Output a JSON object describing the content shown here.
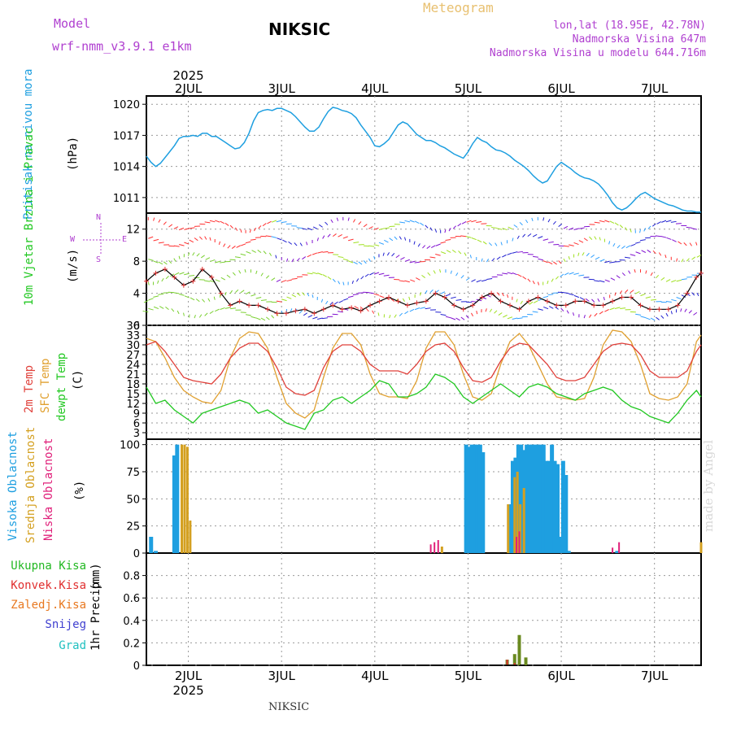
{
  "header": {
    "model_label": "Model",
    "model_name": "wrf-nmm_v3.9.1  e1km",
    "station": "NIKSIC",
    "title": "Meteogram",
    "lonlat": "lon,lat (18.95E, 42.78N)",
    "elevation": "Nadmorska Visina 647m",
    "model_elevation": "Nadmorska Visina u modelu 644.716m",
    "footer_station": "NIKSIC",
    "credit": "made by Angel"
  },
  "colors": {
    "pressure": "#1e9fe0",
    "temp2m": "#e0403a",
    "sfc_temp": "#e0a030",
    "dewpt": "#22c822",
    "cloud_high": "#1e9fe0",
    "cloud_mid": "#d4a020",
    "cloud_low": "#e0207a",
    "precip_total": "#22b822",
    "precip_conv": "#e03030",
    "precip_frz": "#e87820",
    "precip_snow": "#4040d0",
    "precip_hail": "#20c0c0",
    "model_text": "#b040d0",
    "title_text": "#e8c070"
  },
  "chart_data": [
    {
      "type": "line",
      "panel": "pressure",
      "ylabel": "Pritisak na nivou mora",
      "unit": "(hPa)",
      "ylim": [
        1009.5,
        1020.8
      ],
      "yticks": [
        1011,
        1014,
        1017,
        1020
      ],
      "x_days": [
        "2JUL",
        "3JUL",
        "4JUL",
        "5JUL",
        "6JUL",
        "7JUL"
      ],
      "year": "2025",
      "x_start": 1.55,
      "x_end": 7.5,
      "series": [
        {
          "x": [
            1.55,
            1.6,
            1.65,
            1.7,
            1.78,
            1.85,
            1.9,
            1.95,
            2.0,
            2.05,
            2.1,
            2.15,
            2.2,
            2.25,
            2.3,
            2.35,
            2.4,
            2.45,
            2.5,
            2.55,
            2.6,
            2.65,
            2.7,
            2.75,
            2.8,
            2.85,
            2.9,
            2.95,
            3.0,
            3.05,
            3.1,
            3.15,
            3.2,
            3.25,
            3.3,
            3.35,
            3.4,
            3.45,
            3.5,
            3.55,
            3.6,
            3.65,
            3.7,
            3.75,
            3.8,
            3.85,
            3.9,
            3.95,
            4.0,
            4.05,
            4.1,
            4.15,
            4.2,
            4.25,
            4.3,
            4.35,
            4.4,
            4.45,
            4.5,
            4.55,
            4.6,
            4.65,
            4.7,
            4.75,
            4.8,
            4.85,
            4.9,
            4.95,
            5.0,
            5.05,
            5.1,
            5.15,
            5.2,
            5.25,
            5.3,
            5.35,
            5.4,
            5.45,
            5.5,
            5.55,
            5.6,
            5.65,
            5.7,
            5.75,
            5.8,
            5.85,
            5.9,
            5.95,
            6.0,
            6.05,
            6.1,
            6.15,
            6.2,
            6.25,
            6.3,
            6.35,
            6.4,
            6.45,
            6.5,
            6.55,
            6.6,
            6.65,
            6.7,
            6.75,
            6.8,
            6.85,
            6.9,
            6.95,
            7.0,
            7.05,
            7.1,
            7.15,
            7.2,
            7.25,
            7.3,
            7.35,
            7.4,
            7.45,
            7.5
          ],
          "y": [
            1015.0,
            1014.4,
            1014.0,
            1014.3,
            1015.2,
            1016.0,
            1016.7,
            1016.9,
            1016.9,
            1017.0,
            1016.9,
            1017.2,
            1017.2,
            1016.9,
            1016.9,
            1016.6,
            1016.3,
            1016.0,
            1015.7,
            1015.8,
            1016.3,
            1017.2,
            1018.4,
            1019.2,
            1019.4,
            1019.5,
            1019.4,
            1019.6,
            1019.6,
            1019.4,
            1019.2,
            1018.8,
            1018.3,
            1017.8,
            1017.4,
            1017.4,
            1017.8,
            1018.6,
            1019.3,
            1019.7,
            1019.6,
            1019.4,
            1019.3,
            1019.1,
            1018.7,
            1018.0,
            1017.4,
            1016.8,
            1016.0,
            1015.9,
            1016.2,
            1016.6,
            1017.3,
            1018.0,
            1018.3,
            1018.1,
            1017.6,
            1017.1,
            1016.8,
            1016.5,
            1016.5,
            1016.3,
            1016.0,
            1015.8,
            1015.5,
            1015.2,
            1015.0,
            1014.8,
            1015.4,
            1016.2,
            1016.8,
            1016.5,
            1016.3,
            1015.9,
            1015.6,
            1015.5,
            1015.3,
            1015.0,
            1014.6,
            1014.3,
            1014.0,
            1013.6,
            1013.1,
            1012.7,
            1012.4,
            1012.6,
            1013.3,
            1014.0,
            1014.4,
            1014.1,
            1013.8,
            1013.4,
            1013.1,
            1012.9,
            1012.8,
            1012.6,
            1012.3,
            1011.8,
            1011.2,
            1010.5,
            1010.0,
            1009.8,
            1010.0,
            1010.4,
            1010.9,
            1011.3,
            1011.5,
            1011.2,
            1010.9,
            1010.7,
            1010.5,
            1010.3,
            1010.2,
            1010.0,
            1009.8,
            1009.7,
            1009.7,
            1009.6,
            1009.6
          ]
        }
      ]
    },
    {
      "type": "line",
      "panel": "wind",
      "ylabel": "10m Vjetar Brzina i Pravac",
      "unit": "(m/s)",
      "ylim": [
        0,
        14
      ],
      "yticks": [
        0,
        4,
        8,
        12
      ],
      "compass": {
        "n": "N",
        "e": "E",
        "w": "W",
        "s": "S"
      },
      "series": [
        {
          "name": "speed",
          "x": [
            1.55,
            1.65,
            1.75,
            1.85,
            1.95,
            2.05,
            2.15,
            2.25,
            2.35,
            2.45,
            2.55,
            2.65,
            2.75,
            2.85,
            2.95,
            3.05,
            3.15,
            3.25,
            3.35,
            3.45,
            3.55,
            3.65,
            3.75,
            3.85,
            3.95,
            4.05,
            4.15,
            4.25,
            4.35,
            4.45,
            4.55,
            4.65,
            4.75,
            4.85,
            4.95,
            5.05,
            5.15,
            5.25,
            5.35,
            5.45,
            5.55,
            5.65,
            5.75,
            5.85,
            5.95,
            6.05,
            6.15,
            6.25,
            6.35,
            6.45,
            6.55,
            6.65,
            6.75,
            6.85,
            6.95,
            7.05,
            7.15,
            7.25,
            7.35,
            7.45,
            7.5
          ],
          "y": [
            5.5,
            6.5,
            7.0,
            6.0,
            5.0,
            5.5,
            7.0,
            6.0,
            4.0,
            2.5,
            3.0,
            2.5,
            2.5,
            2.0,
            1.5,
            1.5,
            1.8,
            2.0,
            1.5,
            2.0,
            2.5,
            2.0,
            2.2,
            1.8,
            2.5,
            3.0,
            3.5,
            3.0,
            2.5,
            2.8,
            3.0,
            4.0,
            3.5,
            2.5,
            2.0,
            2.5,
            3.5,
            4.0,
            3.0,
            2.5,
            2.0,
            3.0,
            3.5,
            3.0,
            2.5,
            2.5,
            3.0,
            3.0,
            2.5,
            2.5,
            3.0,
            3.5,
            3.5,
            2.5,
            2.0,
            2.0,
            2.0,
            2.5,
            4.0,
            6.0,
            6.5
          ]
        }
      ]
    },
    {
      "type": "line",
      "panel": "temperature",
      "ylabels": [
        "2m Temp",
        "SFC Temp",
        "dewpt Temp"
      ],
      "unit": "(C)",
      "ylim": [
        1,
        36
      ],
      "yticks": [
        3,
        6,
        9,
        12,
        15,
        18,
        21,
        24,
        27,
        30,
        33,
        36
      ],
      "series": [
        {
          "name": "2m Temp",
          "x": [
            1.55,
            1.65,
            1.75,
            1.85,
            1.95,
            2.05,
            2.15,
            2.25,
            2.35,
            2.45,
            2.55,
            2.65,
            2.75,
            2.85,
            2.95,
            3.05,
            3.15,
            3.25,
            3.35,
            3.45,
            3.55,
            3.65,
            3.75,
            3.85,
            3.95,
            4.05,
            4.15,
            4.25,
            4.35,
            4.45,
            4.55,
            4.65,
            4.75,
            4.85,
            4.95,
            5.05,
            5.15,
            5.25,
            5.35,
            5.45,
            5.55,
            5.65,
            5.75,
            5.85,
            5.95,
            6.05,
            6.15,
            6.25,
            6.35,
            6.45,
            6.55,
            6.65,
            6.75,
            6.85,
            6.95,
            7.05,
            7.15,
            7.25,
            7.35,
            7.45,
            7.5
          ],
          "y": [
            30,
            31,
            28,
            24,
            20,
            19,
            18.5,
            18,
            21,
            26,
            29,
            30.5,
            30.5,
            28,
            23,
            17,
            15,
            14.5,
            16,
            23,
            28,
            30,
            30,
            28,
            24,
            22,
            22,
            22,
            21,
            24,
            28,
            30,
            30.5,
            28,
            23,
            19,
            18.5,
            20,
            25,
            29,
            30.5,
            30,
            27,
            24,
            20,
            19,
            19,
            20,
            24,
            28,
            30,
            30.5,
            30,
            27,
            22,
            20,
            20,
            20,
            22,
            28,
            30
          ]
        },
        {
          "name": "SFC Temp",
          "x": [
            1.55,
            1.65,
            1.75,
            1.85,
            1.95,
            2.05,
            2.15,
            2.25,
            2.35,
            2.45,
            2.55,
            2.65,
            2.75,
            2.85,
            2.95,
            3.05,
            3.15,
            3.25,
            3.35,
            3.45,
            3.55,
            3.65,
            3.75,
            3.85,
            3.95,
            4.05,
            4.15,
            4.25,
            4.35,
            4.45,
            4.55,
            4.65,
            4.75,
            4.85,
            4.95,
            5.05,
            5.15,
            5.25,
            5.35,
            5.45,
            5.55,
            5.65,
            5.75,
            5.85,
            5.95,
            6.05,
            6.15,
            6.25,
            6.35,
            6.45,
            6.55,
            6.65,
            6.75,
            6.85,
            6.95,
            7.05,
            7.15,
            7.25,
            7.35,
            7.45,
            7.5
          ],
          "y": [
            32,
            31,
            26,
            20,
            16,
            14,
            12.5,
            12,
            16,
            26,
            32,
            34,
            33.5,
            29,
            20,
            12,
            9,
            7.5,
            10,
            20,
            29,
            33.5,
            33.5,
            30,
            21,
            15,
            14,
            14,
            13.5,
            19,
            29,
            34,
            34,
            30,
            21,
            14,
            13,
            15,
            24,
            31,
            33.5,
            30,
            24,
            18,
            14,
            13.5,
            13,
            13.5,
            20,
            30,
            34.5,
            34,
            31,
            24,
            15,
            13.5,
            13,
            14,
            18,
            31,
            33
          ]
        },
        {
          "name": "dewpt Temp",
          "x": [
            1.55,
            1.65,
            1.75,
            1.85,
            1.95,
            2.05,
            2.15,
            2.25,
            2.35,
            2.45,
            2.55,
            2.65,
            2.75,
            2.85,
            2.95,
            3.05,
            3.15,
            3.25,
            3.35,
            3.45,
            3.55,
            3.65,
            3.75,
            3.85,
            3.95,
            4.05,
            4.15,
            4.25,
            4.35,
            4.45,
            4.55,
            4.65,
            4.75,
            4.85,
            4.95,
            5.05,
            5.15,
            5.25,
            5.35,
            5.45,
            5.55,
            5.65,
            5.75,
            5.85,
            5.95,
            6.05,
            6.15,
            6.25,
            6.35,
            6.45,
            6.55,
            6.65,
            6.75,
            6.85,
            6.95,
            7.05,
            7.15,
            7.25,
            7.35,
            7.45,
            7.5
          ],
          "y": [
            17,
            12,
            13,
            10,
            8,
            6,
            9,
            10,
            11,
            12,
            13,
            12,
            9,
            10,
            8,
            6,
            5,
            4,
            9,
            10,
            13,
            14,
            12,
            14,
            16,
            19,
            18,
            14,
            14,
            15,
            17,
            21,
            20,
            18,
            14,
            12,
            14,
            16,
            18,
            16,
            14,
            17,
            18,
            17,
            15,
            14,
            13,
            15,
            16,
            17,
            16,
            13,
            11,
            10,
            8,
            7,
            6,
            9,
            13,
            16,
            14
          ]
        }
      ]
    },
    {
      "type": "bar",
      "panel": "clouds",
      "ylabels": [
        "Visoka Oblacnost",
        "Srednja Oblacnost",
        "Niska Oblacnost"
      ],
      "unit": "(%)",
      "ylim": [
        0,
        105
      ],
      "yticks": [
        0,
        25,
        50,
        75,
        100
      ],
      "series": [
        {
          "name": "Visoka Oblacnost",
          "x": [
            1.6,
            1.65,
            1.85,
            1.88,
            4.98,
            5.01,
            5.04,
            5.07,
            5.1,
            5.13,
            5.16,
            5.45,
            5.48,
            5.51,
            5.54,
            5.57,
            5.6,
            5.63,
            5.66,
            5.69,
            5.72,
            5.75,
            5.78,
            5.81,
            5.84,
            5.87,
            5.9,
            5.93,
            5.96,
            5.99,
            6.02,
            6.05,
            6.08,
            6.6
          ],
          "y": [
            15,
            2,
            90,
            100,
            100,
            98,
            100,
            100,
            100,
            100,
            93,
            45,
            85,
            88,
            100,
            100,
            95,
            100,
            100,
            100,
            100,
            100,
            100,
            100,
            85,
            85,
            100,
            85,
            82,
            15,
            85,
            72,
            2,
            2
          ]
        },
        {
          "name": "Srednja Oblacnost",
          "x": [
            1.93,
            1.96,
            1.99,
            2.02,
            4.72,
            5.43,
            5.5,
            5.53,
            5.56,
            5.6,
            7.5
          ],
          "y": [
            100,
            100,
            98,
            30,
            6,
            45,
            70,
            75,
            45,
            60,
            10
          ]
        },
        {
          "name": "Niska Oblacnost",
          "x": [
            4.6,
            4.64,
            4.68,
            5.52,
            5.55,
            6.55,
            6.62
          ],
          "y": [
            8,
            10,
            12,
            15,
            20,
            5,
            10
          ]
        }
      ]
    },
    {
      "type": "bar",
      "panel": "precip",
      "ylabel": "1hr Precip",
      "unit": "(mm)",
      "ylabels": [
        "Ukupna Kisa",
        "Konvek.Kisa",
        "Zaledj.Kisa",
        "Snijeg",
        "Grad"
      ],
      "ylim": [
        0,
        1.0
      ],
      "yticks": [
        0,
        0.2,
        0.4,
        0.6,
        0.8
      ],
      "series": [
        {
          "name": "Ukupna Kisa",
          "x": [
            5.42,
            5.5,
            5.55,
            5.62
          ],
          "y": [
            0.05,
            0.1,
            0.27,
            0.07
          ]
        },
        {
          "name": "Konvek.Kisa",
          "x": [
            5.42,
            5.5
          ],
          "y": [
            0.05,
            0.02
          ]
        }
      ]
    }
  ]
}
